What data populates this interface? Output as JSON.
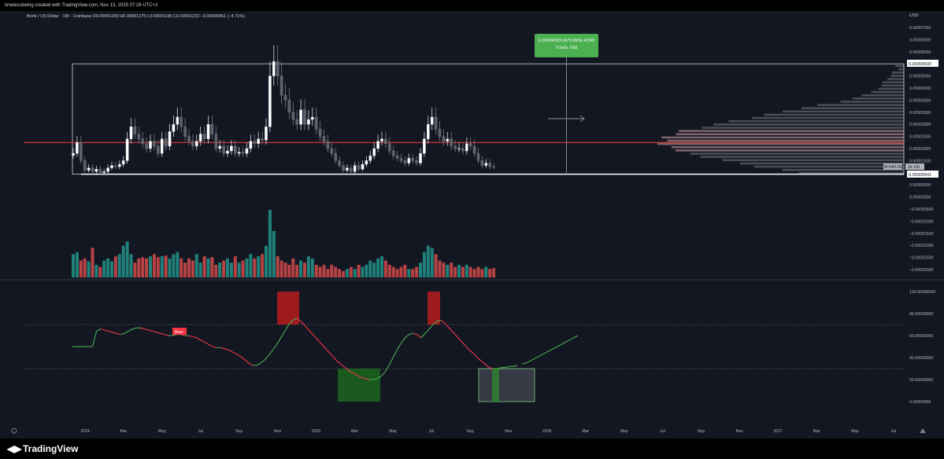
{
  "titlebar": {
    "text": "timelessbeing created with TradingView.com, Nov 13, 2025 07:26 UTC+2"
  },
  "symbol": {
    "line": "Bonk / US Dollar · 1W · Coinbase  O0.00001293  H0.00001375  L0.00001195  C0.00001233  −0.00000061 (−4.71%)"
  },
  "currency": "USD",
  "measure": {
    "line1": "0.00004593 (473.65%) 4,593",
    "line2": "9 bars, 63d"
  },
  "labels": {
    "top_level": "0.00005500",
    "bottom_level": "0.00000941",
    "ticker": "BONKUSD",
    "ticker_time": "3d 19h",
    "bear": "Bear"
  },
  "colors": {
    "up": "#26a69a",
    "down": "#ef5350",
    "line_up": "#4caf50",
    "line_down": "#f23645",
    "bg": "#131722",
    "hline": "#e53935",
    "measure": "#4caf50"
  },
  "footer": {
    "brand": "TradingView"
  },
  "chart_data": [
    {
      "type": "line",
      "name": "price",
      "title": "",
      "y_ticks": [
        "0.00007000",
        "0.00006500",
        "0.00006000",
        "0.00005500",
        "0.00005000",
        "0.00004500",
        "0.00004000",
        "0.00003500",
        "0.00003000",
        "0.00002500",
        "0.00002000",
        "0.00001500",
        "0.00001000",
        "0.00000500",
        "0.00000000",
        "−0.00000500",
        "−0.00001000",
        "−0.00001500",
        "−0.00002000",
        "−0.00002500",
        "−0.00003000"
      ],
      "x_ticks": [
        "2024",
        "Mar",
        "May",
        "Jul",
        "Sep",
        "Nov",
        "2025",
        "Mar",
        "May",
        "Jul",
        "Sep",
        "Nov",
        "2026",
        "Mar",
        "May",
        "Jul",
        "Sep",
        "Nov",
        "2027",
        "Mar",
        "May",
        "Jul"
      ],
      "ylim": [
        -3e-05,
        7e-05
      ],
      "horizontal_level": 2.25e-05,
      "range_top": 5.5e-05,
      "range_bottom": 9.41e-06,
      "closes": [
        1.8e-05,
        2.25e-05,
        1.5e-05,
        1.1e-05,
        1.2e-05,
        1.05e-05,
        1.15e-05,
        1e-05,
        1.05e-05,
        1.2e-05,
        1.3e-05,
        1.25e-05,
        1.35e-05,
        1.5e-05,
        2.4e-05,
        2.9e-05,
        2.6e-05,
        2.4e-05,
        2.2e-05,
        2e-05,
        2.3e-05,
        2.1e-05,
        1.8e-05,
        2.4e-05,
        2.1e-05,
        2.7e-05,
        3e-05,
        3.3e-05,
        2.9e-05,
        2.5e-05,
        2.3e-05,
        2.1e-05,
        2.3e-05,
        2.6e-05,
        2.4e-05,
        3e-05,
        2.6e-05,
        2e-05,
        2.1e-05,
        1.8e-05,
        1.9e-05,
        2.1e-05,
        1.8e-05,
        1.85e-05,
        1.8e-05,
        2e-05,
        2.3e-05,
        2.2e-05,
        2.4e-05,
        2.35e-05,
        2.9e-05,
        5e-05,
        5.6e-05,
        5e-05,
        4.2e-05,
        4e-05,
        3.5e-05,
        3.2e-05,
        3e-05,
        3.6e-05,
        3e-05,
        3.2e-05,
        3.3e-05,
        2.8e-05,
        2.5e-05,
        2.3e-05,
        2e-05,
        1.8e-05,
        1.5e-05,
        1.3e-05,
        1.1e-05,
        1.2e-05,
        1.05e-05,
        1.3e-05,
        1.15e-05,
        1.35e-05,
        1.5e-05,
        1.7e-05,
        2e-05,
        2.3e-05,
        2.4e-05,
        2.2e-05,
        1.9e-05,
        1.7e-05,
        1.6e-05,
        1.5e-05,
        1.4e-05,
        1.6e-05,
        1.5e-05,
        1.4e-05,
        1.8e-05,
        2.4e-05,
        3e-05,
        3.3e-05,
        2.8e-05,
        2.5e-05,
        2.3e-05,
        2.4e-05,
        2.1e-05,
        2e-05,
        2e-05,
        1.9e-05,
        2.2e-05,
        2.1e-05,
        1.8e-05,
        1.5e-05,
        1.3e-05,
        1.4e-05,
        1.25e-05,
        1.23e-05
      ],
      "volumes": [
        55,
        60,
        40,
        45,
        38,
        70,
        30,
        25,
        40,
        45,
        38,
        50,
        55,
        75,
        85,
        55,
        35,
        45,
        48,
        45,
        50,
        55,
        48,
        50,
        52,
        45,
        55,
        60,
        45,
        35,
        45,
        40,
        55,
        35,
        50,
        45,
        48,
        30,
        35,
        40,
        45,
        35,
        50,
        35,
        40,
        45,
        55,
        45,
        50,
        55,
        75,
        160,
        110,
        50,
        40,
        35,
        30,
        45,
        30,
        40,
        35,
        50,
        45,
        30,
        25,
        30,
        20,
        30,
        25,
        20,
        15,
        20,
        25,
        20,
        30,
        25,
        30,
        40,
        35,
        45,
        50,
        40,
        30,
        25,
        20,
        25,
        30,
        20,
        20,
        25,
        35,
        60,
        75,
        70,
        55,
        40,
        35,
        30,
        35,
        25,
        30,
        25,
        30,
        25,
        20,
        25,
        20,
        25,
        20,
        22
      ],
      "volume_profile_note": ""
    },
    {
      "type": "line",
      "name": "",
      "y_ticks": [
        "100.00000000",
        "80.00000000",
        "60.00000000",
        "40.00000000",
        "20.00000000",
        "0.00000000"
      ],
      "ylim": [
        0,
        100
      ],
      "levels": [
        70,
        30
      ],
      "values": [
        50,
        50,
        50,
        50,
        50,
        50,
        64,
        66,
        65,
        64,
        63,
        62,
        61,
        62,
        64,
        66,
        67,
        67,
        66,
        65,
        64,
        63,
        62,
        61,
        60,
        60,
        61,
        61,
        60,
        60,
        59,
        58,
        56,
        54,
        52,
        50,
        49,
        49,
        48,
        47,
        45,
        43,
        41,
        38,
        35,
        33,
        33,
        35,
        38,
        42,
        47,
        52,
        58,
        64,
        70,
        74,
        76,
        73,
        69,
        65,
        61,
        57,
        53,
        49,
        45,
        41,
        37,
        34,
        31,
        28,
        26,
        24,
        22,
        21,
        20,
        20,
        21,
        23,
        27,
        33,
        40,
        47,
        53,
        58,
        61,
        62,
        61,
        58,
        62,
        66,
        70,
        73,
        74,
        71,
        67,
        63,
        59,
        55,
        51,
        47,
        44,
        40,
        37,
        34,
        31,
        30,
        30,
        31,
        31,
        32,
        32,
        33
      ],
      "projection": [
        34,
        36,
        39,
        42,
        45,
        48,
        51,
        54,
        57,
        60
      ]
    }
  ]
}
